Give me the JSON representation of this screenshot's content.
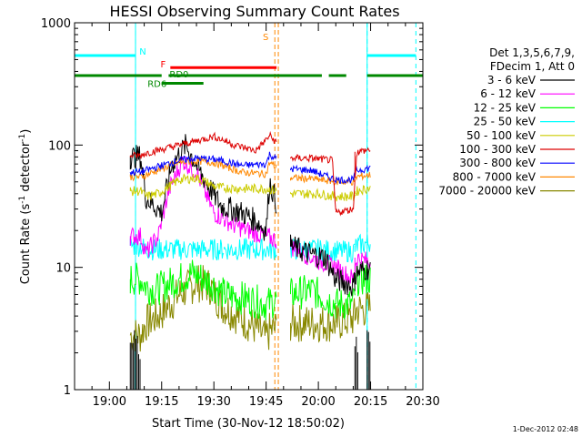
{
  "chart_data": {
    "type": "line",
    "title": "HESSI Observing Summary Count Rates",
    "xlabel": "Start Time (30-Nov-12 18:50:02)",
    "ylabel": "Count Rate (s",
    "ylabel_sup1": "-1",
    "ylabel_mid": " detector",
    "ylabel_sup2": "-1",
    "ylabel_end": ")",
    "yscale": "log",
    "ylim": [
      1,
      1000
    ],
    "yticks": [
      {
        "value": 1,
        "label": "1"
      },
      {
        "value": 10,
        "label": "10"
      },
      {
        "value": 100,
        "label": "100"
      },
      {
        "value": 1000,
        "label": "1000"
      }
    ],
    "xlim_minutes_after_1900": [
      -10,
      90
    ],
    "xticks": [
      {
        "minute": 0,
        "label": "19:00"
      },
      {
        "minute": 15,
        "label": "19:15"
      },
      {
        "minute": 30,
        "label": "19:30"
      },
      {
        "minute": 45,
        "label": "19:45"
      },
      {
        "minute": 60,
        "label": "20:00"
      },
      {
        "minute": 75,
        "label": "20:15"
      },
      {
        "minute": 90,
        "label": "20:30"
      }
    ],
    "legend_header": [
      "Det 1,3,5,6,7,9,",
      "FDecim 1, Att 0"
    ],
    "legend_placement": "right",
    "series": [
      {
        "name": "3 - 6 keV",
        "color": "#000000"
      },
      {
        "name": "6 - 12 keV",
        "color": "#ff00ff"
      },
      {
        "name": "12 - 25 keV",
        "color": "#00ff00"
      },
      {
        "name": "25 - 50 keV",
        "color": "#00ffff"
      },
      {
        "name": "50 - 100 keV",
        "color": "#cccc00"
      },
      {
        "name": "100 - 300 keV",
        "color": "#dd0000"
      },
      {
        "name": "300 - 800 keV",
        "color": "#0000ff"
      },
      {
        "name": "800 - 7000 keV",
        "color": "#ff8800"
      },
      {
        "name": "7000 - 20000 keV",
        "color": "#888800"
      }
    ],
    "segments_minutes": [
      [
        6,
        33
      ],
      [
        33,
        48
      ],
      [
        52,
        65
      ],
      [
        65,
        70.5
      ],
      [
        70.5,
        75
      ]
    ],
    "series_values": [
      [
        [
          9,
          80
        ],
        [
          10.5,
          37
        ],
        [
          15,
          28
        ],
        [
          18,
          70
        ],
        [
          22,
          100
        ],
        [
          26,
          60
        ],
        [
          32,
          32
        ],
        [
          38,
          28
        ],
        [
          42,
          24
        ],
        [
          45,
          20
        ],
        [
          46,
          50
        ],
        [
          52,
          15
        ],
        [
          57,
          13
        ],
        [
          62,
          12
        ],
        [
          65,
          8
        ],
        [
          70,
          7
        ],
        [
          71,
          9
        ],
        [
          75,
          10
        ]
      ],
      [
        [
          9,
          18
        ],
        [
          10.5,
          13
        ],
        [
          14,
          18
        ],
        [
          17,
          42
        ],
        [
          21,
          75
        ],
        [
          25,
          60
        ],
        [
          30,
          28
        ],
        [
          36,
          22
        ],
        [
          42,
          19
        ],
        [
          45,
          18
        ],
        [
          52,
          15
        ],
        [
          58,
          12
        ],
        [
          65,
          10
        ],
        [
          70,
          8
        ],
        [
          71,
          12
        ],
        [
          75,
          11
        ]
      ],
      [
        [
          9,
          8
        ],
        [
          10.5,
          7
        ],
        [
          13,
          6.5
        ],
        [
          20,
          8
        ],
        [
          24,
          9
        ],
        [
          29,
          7.5
        ],
        [
          33,
          6
        ],
        [
          40,
          5.5
        ],
        [
          45,
          5
        ],
        [
          52,
          6
        ],
        [
          58,
          6.5
        ],
        [
          65,
          5
        ],
        [
          70,
          5
        ],
        [
          71,
          8
        ],
        [
          75,
          8
        ]
      ],
      [
        [
          9,
          15
        ],
        [
          10.5,
          14
        ],
        [
          14,
          14
        ],
        [
          22,
          14
        ],
        [
          30,
          14
        ],
        [
          40,
          14
        ],
        [
          45,
          14
        ],
        [
          52,
          14
        ],
        [
          60,
          14
        ],
        [
          65,
          13.5
        ],
        [
          70,
          13.5
        ],
        [
          71,
          15
        ],
        [
          75,
          16
        ]
      ],
      [
        [
          9,
          42
        ],
        [
          10.5,
          38
        ],
        [
          14,
          40
        ],
        [
          20,
          52
        ],
        [
          25,
          54
        ],
        [
          31,
          45
        ],
        [
          38,
          44
        ],
        [
          45,
          44
        ],
        [
          52,
          40
        ],
        [
          60,
          40
        ],
        [
          65,
          38
        ],
        [
          70,
          38
        ],
        [
          71,
          42
        ],
        [
          75,
          45
        ]
      ],
      [
        [
          9,
          82
        ],
        [
          10.5,
          86
        ],
        [
          15,
          92
        ],
        [
          20,
          100
        ],
        [
          25,
          108
        ],
        [
          30,
          118
        ],
        [
          36,
          100
        ],
        [
          42,
          90
        ],
        [
          45,
          110
        ],
        [
          46,
          120
        ],
        [
          52,
          78
        ],
        [
          58,
          78
        ],
        [
          64,
          75
        ],
        [
          65,
          28
        ],
        [
          70,
          30
        ],
        [
          71,
          88
        ],
        [
          75,
          92
        ]
      ],
      [
        [
          9,
          60
        ],
        [
          10.5,
          62
        ],
        [
          15,
          68
        ],
        [
          20,
          75
        ],
        [
          25,
          78
        ],
        [
          31,
          76
        ],
        [
          38,
          68
        ],
        [
          45,
          70
        ],
        [
          46,
          84
        ],
        [
          52,
          64
        ],
        [
          58,
          62
        ],
        [
          65,
          52
        ],
        [
          70,
          52
        ],
        [
          71,
          62
        ],
        [
          75,
          65
        ]
      ],
      [
        [
          9,
          55
        ],
        [
          10.5,
          57
        ],
        [
          15,
          64
        ],
        [
          20,
          72
        ],
        [
          25,
          74
        ],
        [
          30,
          72
        ],
        [
          38,
          60
        ],
        [
          45,
          58
        ],
        [
          46,
          72
        ],
        [
          52,
          54
        ],
        [
          58,
          53
        ],
        [
          65,
          50
        ],
        [
          70,
          50
        ],
        [
          71,
          55
        ],
        [
          75,
          57
        ]
      ],
      [
        [
          9,
          2.8
        ],
        [
          10.5,
          3.5
        ],
        [
          14,
          4
        ],
        [
          20,
          6
        ],
        [
          25,
          7.5
        ],
        [
          29,
          7
        ],
        [
          32,
          5
        ],
        [
          38,
          3.8
        ],
        [
          42,
          3.2
        ],
        [
          45,
          2.6
        ],
        [
          46,
          3
        ],
        [
          52,
          3.5
        ],
        [
          60,
          3.5
        ],
        [
          65,
          3.5
        ],
        [
          70,
          3.8
        ],
        [
          71,
          4.5
        ],
        [
          75,
          4.6
        ]
      ]
    ],
    "flags": {
      "n_label": "N",
      "f_label": "F",
      "rd0_label": "RD0",
      "rd6_label": "RD6",
      "s_label": "S",
      "n_color": "#00ffff",
      "f_color": "#ff0000",
      "rd_color": "#008800",
      "s_color": "#ff8800",
      "n_periods": [
        [
          -10,
          7.5
        ],
        [
          74,
          88
        ]
      ],
      "f_period": [
        17.5,
        48
      ],
      "rd0_periods": [
        [
          -10,
          15
        ],
        [
          17,
          61
        ],
        [
          63,
          68
        ],
        [
          74,
          90
        ]
      ],
      "rd6_period": [
        15,
        27
      ],
      "eclipse_minutes": [
        7.5,
        74
      ],
      "n_boundaries": [
        -10,
        7.5,
        74,
        88
      ],
      "s_minutes": [
        47.5,
        48.5
      ]
    }
  },
  "timestamp": "1-Dec-2012 02:48"
}
